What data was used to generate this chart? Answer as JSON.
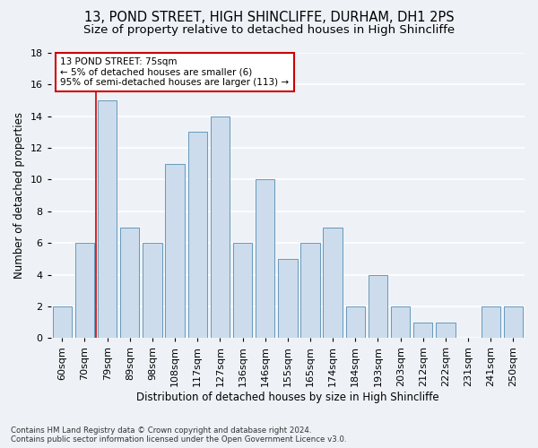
{
  "title1": "13, POND STREET, HIGH SHINCLIFFE, DURHAM, DH1 2PS",
  "title2": "Size of property relative to detached houses in High Shincliffe",
  "xlabel": "Distribution of detached houses by size in High Shincliffe",
  "ylabel": "Number of detached properties",
  "footnote": "Contains HM Land Registry data © Crown copyright and database right 2024.\nContains public sector information licensed under the Open Government Licence v3.0.",
  "bin_labels": [
    "60sqm",
    "70sqm",
    "79sqm",
    "89sqm",
    "98sqm",
    "108sqm",
    "117sqm",
    "127sqm",
    "136sqm",
    "146sqm",
    "155sqm",
    "165sqm",
    "174sqm",
    "184sqm",
    "193sqm",
    "203sqm",
    "212sqm",
    "222sqm",
    "231sqm",
    "241sqm",
    "250sqm"
  ],
  "bar_heights": [
    2,
    6,
    15,
    7,
    6,
    11,
    13,
    14,
    6,
    10,
    5,
    6,
    7,
    2,
    4,
    2,
    1,
    1,
    0,
    2,
    2
  ],
  "bar_color": "#ccdcec",
  "bar_edge_color": "#6699bb",
  "vline_color": "#cc0000",
  "annotation_text": "13 POND STREET: 75sqm\n← 5% of detached houses are smaller (6)\n95% of semi-detached houses are larger (113) →",
  "annotation_box_color": "#ffffff",
  "annotation_box_edge": "#cc0000",
  "ylim": [
    0,
    18
  ],
  "yticks": [
    0,
    2,
    4,
    6,
    8,
    10,
    12,
    14,
    16,
    18
  ],
  "background_color": "#eef2f7",
  "grid_color": "#ffffff",
  "title1_fontsize": 10.5,
  "title2_fontsize": 9.5,
  "xlabel_fontsize": 8.5,
  "ylabel_fontsize": 8.5,
  "tick_fontsize": 8,
  "annot_fontsize": 7.5
}
